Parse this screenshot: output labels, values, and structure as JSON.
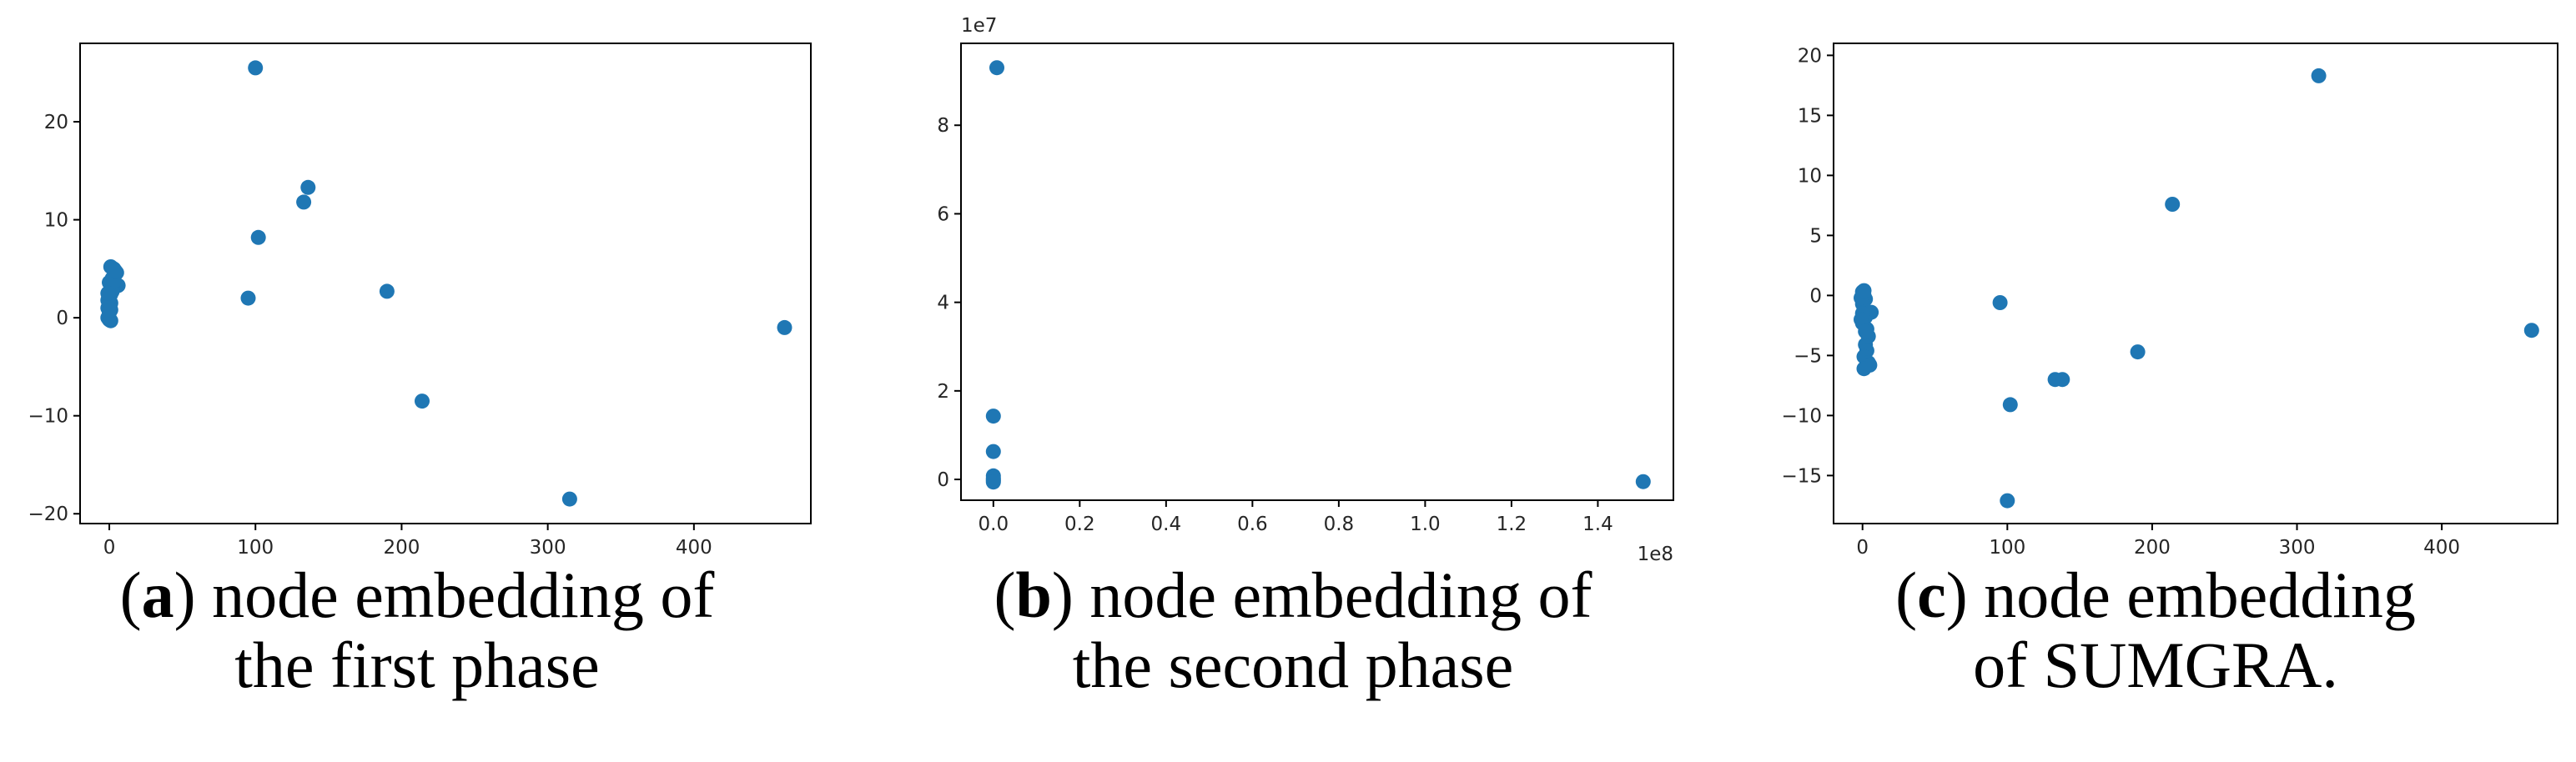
{
  "chart_data": [
    {
      "type": "scatter",
      "panel": "a",
      "caption_letter": "a",
      "caption_rest": " node embedding of",
      "caption_line2": "the first phase",
      "xlim": [
        -20,
        480
      ],
      "ylim": [
        -21,
        28
      ],
      "xticks": [
        0,
        100,
        200,
        300,
        400
      ],
      "yticks": [
        -20,
        -10,
        0,
        10,
        20
      ],
      "exponent_x": "",
      "exponent_y": "",
      "marker_color": "#1f77b4",
      "points": [
        [
          100,
          25.5
        ],
        [
          136,
          13.3
        ],
        [
          133,
          11.8
        ],
        [
          102,
          8.2
        ],
        [
          95,
          2.0
        ],
        [
          190,
          2.7
        ],
        [
          462,
          -1.0
        ],
        [
          214,
          -8.5
        ],
        [
          315,
          -18.5
        ],
        [
          1,
          5.2
        ],
        [
          3,
          5.0
        ],
        [
          5,
          4.6
        ],
        [
          6,
          3.3
        ],
        [
          2,
          4.0
        ],
        [
          0,
          3.6
        ],
        [
          2,
          3.0
        ],
        [
          1,
          2.4
        ],
        [
          0,
          2.0
        ],
        [
          1,
          1.5
        ],
        [
          -1,
          1.0
        ],
        [
          0,
          0.5
        ],
        [
          -1,
          0.0
        ],
        [
          0,
          -0.2
        ],
        [
          1,
          -0.3
        ],
        [
          0,
          1.2
        ],
        [
          2,
          2.7
        ],
        [
          -1,
          1.8
        ],
        [
          3,
          3.8
        ],
        [
          1,
          0.8
        ],
        [
          -1,
          2.5
        ],
        [
          4,
          4.8
        ]
      ]
    },
    {
      "type": "scatter",
      "panel": "b",
      "caption_letter": "b",
      "caption_rest": " node embedding of",
      "caption_line2": "the second phase",
      "xlim": [
        -7500000,
        157500000
      ],
      "ylim": [
        -4700000,
        98500000
      ],
      "xticks": [
        0,
        20000000,
        40000000,
        60000000,
        80000000,
        100000000,
        120000000,
        140000000
      ],
      "xtick_labels": [
        "0.0",
        "0.2",
        "0.4",
        "0.6",
        "0.8",
        "1.0",
        "1.2",
        "1.4"
      ],
      "yticks": [
        0,
        20000000,
        40000000,
        60000000,
        80000000
      ],
      "ytick_labels": [
        "0",
        "2",
        "4",
        "6",
        "8"
      ],
      "exponent_x": "1e8",
      "exponent_y": "1e7",
      "marker_color": "#1f77b4",
      "points": [
        [
          800000,
          93000000
        ],
        [
          0,
          14300000
        ],
        [
          0,
          6300000
        ],
        [
          150500000,
          -500000
        ],
        [
          0,
          800000
        ],
        [
          0,
          0
        ],
        [
          0,
          -300000
        ],
        [
          0,
          300000
        ],
        [
          0,
          -600000
        ]
      ]
    },
    {
      "type": "scatter",
      "panel": "c",
      "caption_letter": "c",
      "caption_rest": " node embedding",
      "caption_line2": "of SUMGRA.",
      "xlim": [
        -20,
        480
      ],
      "ylim": [
        -19,
        21
      ],
      "xticks": [
        0,
        100,
        200,
        300,
        400
      ],
      "yticks": [
        -15,
        -10,
        -5,
        0,
        5,
        10,
        15,
        20
      ],
      "exponent_x": "",
      "exponent_y": "",
      "marker_color": "#1f77b4",
      "points": [
        [
          315,
          18.3
        ],
        [
          214,
          7.6
        ],
        [
          462,
          -2.9
        ],
        [
          95,
          -0.6
        ],
        [
          190,
          -4.7
        ],
        [
          133,
          -7.0
        ],
        [
          138,
          -7.0
        ],
        [
          102,
          -9.1
        ],
        [
          100,
          -17.1
        ],
        [
          0,
          0.3
        ],
        [
          1,
          0.0
        ],
        [
          2,
          -0.3
        ],
        [
          6,
          -1.4
        ],
        [
          0,
          -0.7
        ],
        [
          1,
          -1.2
        ],
        [
          2,
          -1.8
        ],
        [
          0,
          -2.3
        ],
        [
          3,
          -2.8
        ],
        [
          4,
          -3.4
        ],
        [
          2,
          -4.1
        ],
        [
          3,
          -4.6
        ],
        [
          1,
          -5.1
        ],
        [
          4,
          -5.6
        ],
        [
          5,
          -5.8
        ],
        [
          1,
          -6.1
        ],
        [
          -1,
          -0.2
        ],
        [
          0,
          -1.5
        ],
        [
          -1,
          -2.0
        ],
        [
          2,
          -3.0
        ],
        [
          1,
          0.4
        ]
      ]
    }
  ]
}
